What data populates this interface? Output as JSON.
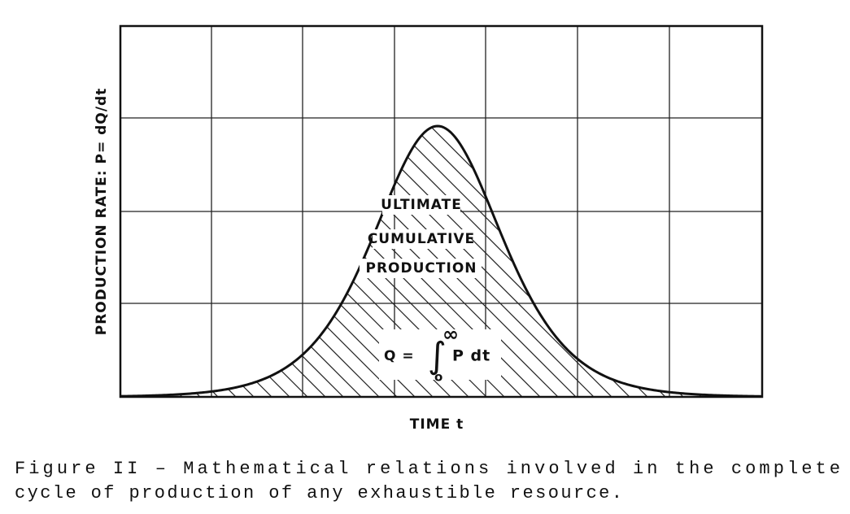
{
  "y_label": "PRODUCTION RATE: P= dQ/dt",
  "x_label": "TIME  t",
  "annotations": [
    "ULTIMATE",
    "CUMULATIVE",
    "PRODUCTION"
  ],
  "formula": {
    "lhs": "Q =",
    "integral": "∫",
    "upper": "∞",
    "lower": "o",
    "integrand": "P dt"
  },
  "caption": [
    "Figure II – Mathematical relations involved in the complete",
    "cycle of production of any exhaustible resource."
  ]
}
